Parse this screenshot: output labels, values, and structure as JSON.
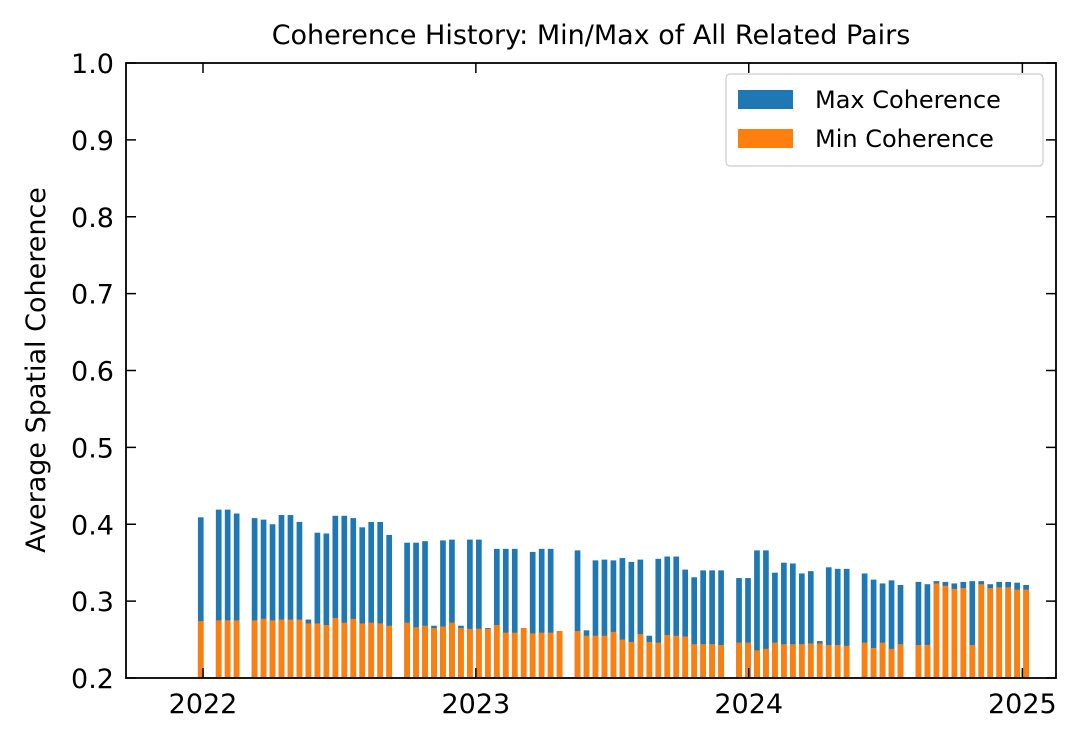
{
  "chart_data": {
    "type": "bar",
    "title": "Coherence History: Min/Max of All Related Pairs",
    "xlabel": "",
    "ylabel": "Average Spatial Coherence",
    "ylim": [
      0.2,
      1.0
    ],
    "xlim": [
      "2021-09-20",
      "2025-02-15"
    ],
    "yticks": [
      "0.2",
      "0.3",
      "0.4",
      "0.5",
      "0.6",
      "0.7",
      "0.8",
      "0.9",
      "1.0"
    ],
    "xticks": [
      {
        "date": "2022-01-01",
        "label": "2022"
      },
      {
        "date": "2023-01-01",
        "label": "2023"
      },
      {
        "date": "2024-01-01",
        "label": "2024"
      },
      {
        "date": "2025-01-01",
        "label": "2025"
      }
    ],
    "legend": {
      "placement": "top-right"
    },
    "series": [
      {
        "name": "Max Coherence",
        "color": "#1f77b4"
      },
      {
        "name": "Min Coherence",
        "color": "#ff7f0e"
      }
    ],
    "x": [
      "2021-12-29",
      "2022-01-22",
      "2022-02-03",
      "2022-02-15",
      "2022-03-11",
      "2022-03-23",
      "2022-04-04",
      "2022-04-16",
      "2022-04-28",
      "2022-05-10",
      "2022-05-22",
      "2022-06-03",
      "2022-06-15",
      "2022-06-27",
      "2022-07-09",
      "2022-07-21",
      "2022-08-02",
      "2022-08-14",
      "2022-08-26",
      "2022-09-07",
      "2022-10-01",
      "2022-10-13",
      "2022-10-25",
      "2022-11-06",
      "2022-11-18",
      "2022-11-30",
      "2022-12-12",
      "2022-12-24",
      "2023-01-05",
      "2023-01-17",
      "2023-01-29",
      "2023-02-10",
      "2023-02-22",
      "2023-03-06",
      "2023-03-18",
      "2023-03-30",
      "2023-04-11",
      "2023-04-23",
      "2023-05-17",
      "2023-05-29",
      "2023-06-10",
      "2023-06-22",
      "2023-07-04",
      "2023-07-16",
      "2023-07-28",
      "2023-08-09",
      "2023-08-21",
      "2023-09-02",
      "2023-09-14",
      "2023-09-26",
      "2023-10-08",
      "2023-10-20",
      "2023-11-01",
      "2023-11-13",
      "2023-11-25",
      "2023-12-19",
      "2023-12-31",
      "2024-01-12",
      "2024-01-24",
      "2024-02-05",
      "2024-02-17",
      "2024-02-29",
      "2024-03-12",
      "2024-03-24",
      "2024-04-05",
      "2024-04-17",
      "2024-04-29",
      "2024-05-11",
      "2024-06-04",
      "2024-06-16",
      "2024-06-28",
      "2024-07-10",
      "2024-07-22",
      "2024-08-15",
      "2024-08-27",
      "2024-09-08",
      "2024-09-20",
      "2024-10-02",
      "2024-10-14",
      "2024-10-26",
      "2024-11-07",
      "2024-11-19",
      "2024-12-01",
      "2024-12-13",
      "2024-12-25",
      "2025-01-06"
    ],
    "max_values": [
      0.409,
      0.419,
      0.419,
      0.414,
      0.408,
      0.406,
      0.4,
      0.412,
      0.412,
      0.403,
      0.276,
      0.389,
      0.388,
      0.411,
      0.411,
      0.408,
      0.396,
      0.403,
      0.403,
      0.386,
      0.376,
      0.376,
      0.378,
      0.268,
      0.379,
      0.38,
      0.268,
      0.38,
      0.38,
      0.265,
      0.368,
      0.368,
      0.368,
      0.265,
      0.364,
      0.368,
      0.368,
      0.261,
      0.366,
      0.262,
      0.353,
      0.354,
      0.353,
      0.356,
      0.351,
      0.354,
      0.255,
      0.355,
      0.358,
      0.358,
      0.341,
      0.331,
      0.34,
      0.34,
      0.34,
      0.33,
      0.33,
      0.366,
      0.366,
      0.337,
      0.35,
      0.349,
      0.336,
      0.339,
      0.248,
      0.344,
      0.342,
      0.342,
      0.336,
      0.328,
      0.323,
      0.327,
      0.321,
      0.325,
      0.322,
      0.326,
      0.325,
      0.323,
      0.325,
      0.326,
      0.326,
      0.322,
      0.325,
      0.325,
      0.324,
      0.321
    ],
    "min_values": [
      0.274,
      0.275,
      0.275,
      0.275,
      0.275,
      0.277,
      0.275,
      0.276,
      0.276,
      0.276,
      0.271,
      0.271,
      0.269,
      0.278,
      0.272,
      0.277,
      0.271,
      0.272,
      0.271,
      0.268,
      0.272,
      0.266,
      0.268,
      0.265,
      0.267,
      0.272,
      0.265,
      0.264,
      0.264,
      0.264,
      0.269,
      0.259,
      0.259,
      0.265,
      0.258,
      0.259,
      0.259,
      0.261,
      0.261,
      0.255,
      0.255,
      0.255,
      0.26,
      0.25,
      0.247,
      0.257,
      0.247,
      0.246,
      0.256,
      0.255,
      0.254,
      0.244,
      0.244,
      0.244,
      0.243,
      0.246,
      0.246,
      0.236,
      0.238,
      0.246,
      0.244,
      0.244,
      0.244,
      0.245,
      0.245,
      0.243,
      0.243,
      0.242,
      0.246,
      0.239,
      0.246,
      0.238,
      0.244,
      0.243,
      0.243,
      0.323,
      0.32,
      0.316,
      0.317,
      0.243,
      0.322,
      0.317,
      0.318,
      0.318,
      0.315,
      0.315
    ]
  }
}
